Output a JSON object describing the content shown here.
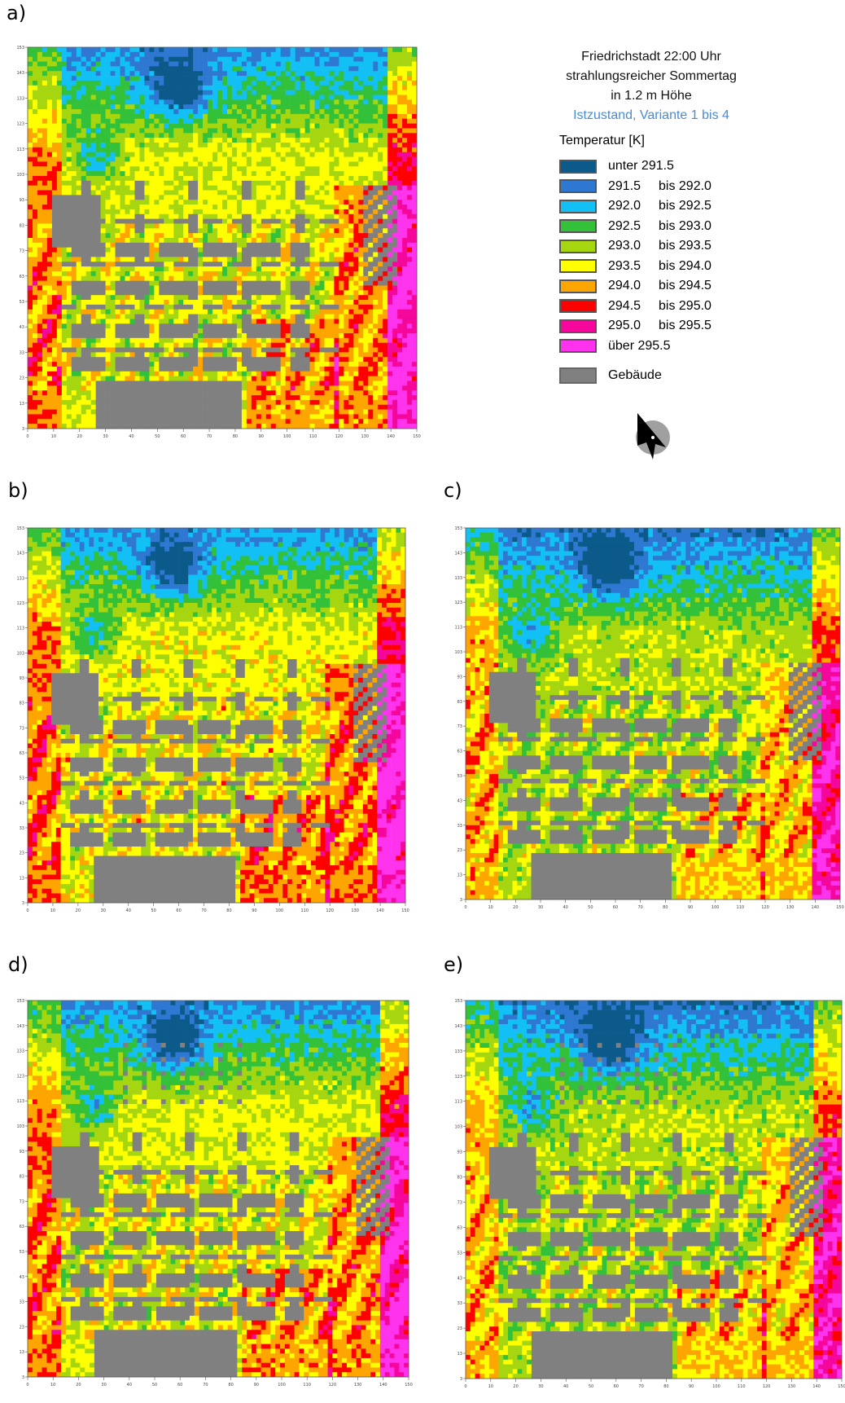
{
  "panels": [
    {
      "label": "a)",
      "key": "a",
      "seed": 11,
      "variant": 0
    },
    {
      "label": "b)",
      "key": "b",
      "seed": 23,
      "variant": 1
    },
    {
      "label": "c)",
      "key": "c",
      "seed": 37,
      "variant": 2
    },
    {
      "label": "d)",
      "key": "d",
      "seed": 51,
      "variant": 3
    },
    {
      "label": "e)",
      "key": "e",
      "seed": 67,
      "variant": 4
    }
  ],
  "axes": {
    "x_ticks": [
      "0",
      "10",
      "20",
      "30",
      "40",
      "50",
      "60",
      "70",
      "80",
      "90",
      "100",
      "110",
      "120",
      "130",
      "140",
      "150"
    ],
    "y_ticks": [
      "3",
      "13",
      "23",
      "33",
      "43",
      "53",
      "63",
      "73",
      "83",
      "93",
      "103",
      "113",
      "123",
      "133",
      "143",
      "153"
    ]
  },
  "legend": {
    "title_lines": [
      "Friedrichstadt 22:00 Uhr",
      "strahlungsreicher Sommertag",
      "in 1.2 m Höhe"
    ],
    "subtitle": "Istzustand, Variante 1 bis 4",
    "subtitle_color": "#4a8bd0",
    "temperature_title": "Temperatur [K]",
    "classes": [
      {
        "from": "unter 291.5",
        "to": "",
        "color": "#0b5a8a"
      },
      {
        "from": "291.5",
        "to": "bis 292.0",
        "color": "#2e78d2"
      },
      {
        "from": "292.0",
        "to": "bis 292.5",
        "color": "#13c0f5"
      },
      {
        "from": "292.5",
        "to": "bis 293.0",
        "color": "#33c13a"
      },
      {
        "from": "293.0",
        "to": "bis 293.5",
        "color": "#a6d610"
      },
      {
        "from": "293.5",
        "to": "bis 294.0",
        "color": "#ffff00"
      },
      {
        "from": "294.0",
        "to": "bis 294.5",
        "color": "#ffa500"
      },
      {
        "from": "294.5",
        "to": "bis 295.0",
        "color": "#ff0000"
      },
      {
        "from": "295.0",
        "to": "bis 295.5",
        "color": "#f5079b"
      },
      {
        "from": "über 295.5",
        "to": "",
        "color": "#ff33ee"
      }
    ],
    "building_label": "Gebäude",
    "building_color": "#808080"
  },
  "compass_icon": "north-arrow-icon"
}
